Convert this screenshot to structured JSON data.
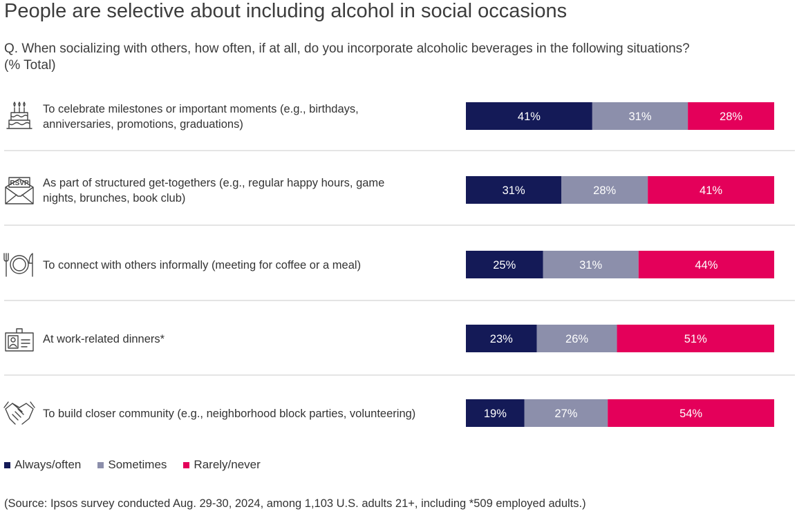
{
  "title": "People are selective about including alcohol in social occasions",
  "question": "Q. When socializing with others, how often, if at all, do you incorporate alcoholic beverages in the following situations? (% Total)",
  "source": "(Source: Ipsos survey conducted Aug. 29-30, 2024, among 1,103 U.S. adults 21+, including *509 employed adults.)",
  "chart_data": {
    "type": "bar",
    "orientation": "horizontal",
    "stacked": true,
    "unit": "%",
    "xlim": [
      0,
      100
    ],
    "grid": false,
    "legend_position": "bottom-left",
    "categories": [
      {
        "label_lines": [
          "To celebrate milestones or important moments (e.g., birthdays,",
          "anniversaries, promotions, graduations)"
        ],
        "icon": "birthday-cake-icon"
      },
      {
        "label_lines": [
          "As part of structured get-togethers (e.g., regular happy hours, game",
          "nights, brunches, book club)"
        ],
        "icon": "rsvp-envelope-icon"
      },
      {
        "label_lines": [
          "To connect with others informally (meeting for coffee or a meal)"
        ],
        "icon": "plate-cutlery-icon"
      },
      {
        "label_lines": [
          "At work-related dinners*"
        ],
        "icon": "id-badge-icon"
      },
      {
        "label_lines": [
          "To build closer community (e.g., neighborhood block parties, volunteering)"
        ],
        "icon": "handshake-icon"
      }
    ],
    "series": [
      {
        "name": "Always/often",
        "color": "#141a57",
        "values": [
          41,
          31,
          25,
          23,
          19
        ]
      },
      {
        "name": "Sometimes",
        "color": "#8c8fab",
        "values": [
          31,
          28,
          31,
          26,
          27
        ]
      },
      {
        "name": "Rarely/never",
        "color": "#e4005a",
        "values": [
          28,
          41,
          44,
          51,
          54
        ]
      }
    ]
  }
}
